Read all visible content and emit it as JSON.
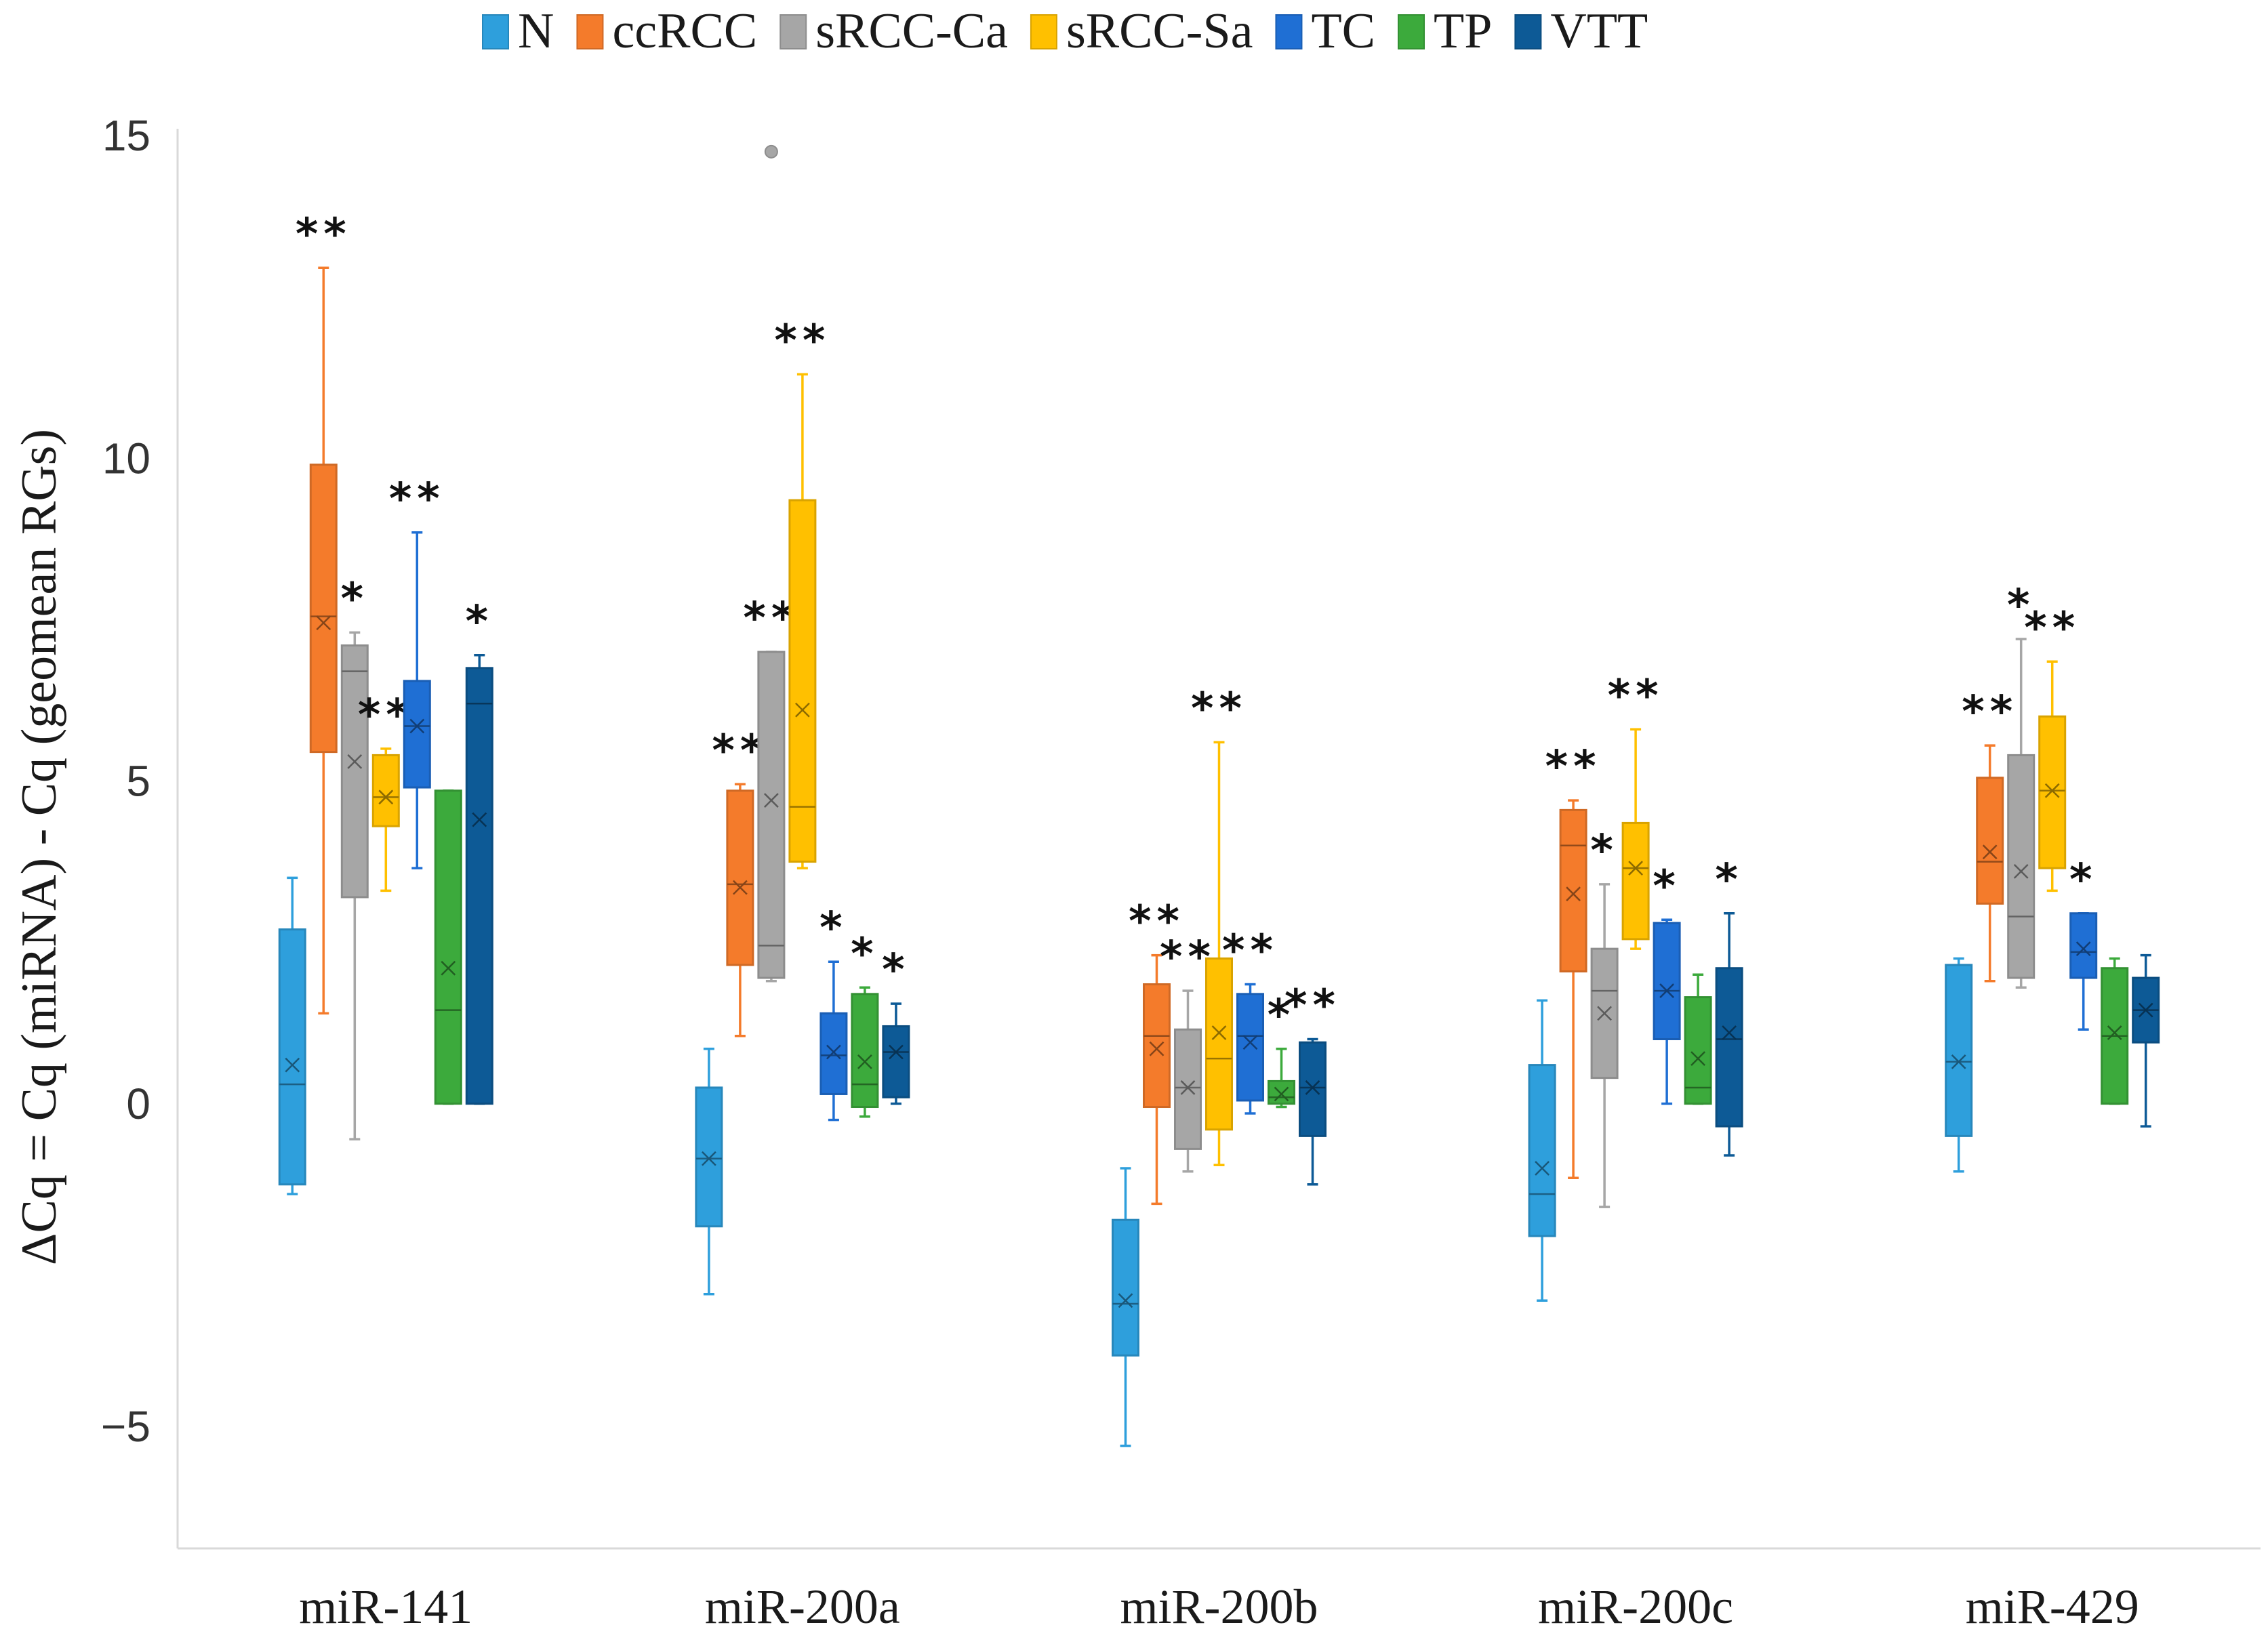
{
  "chart_data": {
    "type": "boxplot",
    "title": "",
    "xlabel": "",
    "ylabel": "ΔCq = Cq (miRNA) - Cq (geomean RGs)",
    "ylim": [
      -7,
      15
    ],
    "yticks": [
      -5,
      0,
      5,
      10,
      15
    ],
    "grid": false,
    "legend_position": "top",
    "categories": [
      "miR-141",
      "miR-200a",
      "miR-200b",
      "miR-200c",
      "miR-429"
    ],
    "series": [
      {
        "name": "N",
        "color": "#2e9fdc",
        "boxes": [
          {
            "min": -1.4,
            "q1": -1.25,
            "median": 0.3,
            "mean": 0.6,
            "q3": 2.7,
            "max": 3.5,
            "sig": ""
          },
          {
            "min": -2.95,
            "q1": -1.9,
            "median": -0.85,
            "mean": -0.85,
            "q3": 0.25,
            "max": 0.85,
            "sig": ""
          },
          {
            "min": -5.3,
            "q1": -3.9,
            "median": -3.1,
            "mean": -3.05,
            "q3": -1.8,
            "max": -1.0,
            "sig": ""
          },
          {
            "min": -3.05,
            "q1": -2.05,
            "median": -1.4,
            "mean": -1.0,
            "q3": 0.6,
            "max": 1.6,
            "sig": ""
          },
          {
            "min": -1.05,
            "q1": -0.5,
            "median": 0.65,
            "mean": 0.65,
            "q3": 2.15,
            "max": 2.25,
            "sig": ""
          }
        ]
      },
      {
        "name": "ccRCC",
        "color": "#f47b2b",
        "boxes": [
          {
            "min": 1.4,
            "q1": 5.45,
            "median": 7.55,
            "mean": 7.45,
            "q3": 9.9,
            "max": 12.95,
            "sig": "**"
          },
          {
            "min": 1.05,
            "q1": 2.15,
            "median": 3.4,
            "mean": 3.35,
            "q3": 4.85,
            "max": 4.95,
            "sig": "**"
          },
          {
            "min": -1.55,
            "q1": -0.05,
            "median": 1.05,
            "mean": 0.85,
            "q3": 1.85,
            "max": 2.3,
            "sig": "**"
          },
          {
            "min": -1.15,
            "q1": 2.05,
            "median": 4.0,
            "mean": 3.25,
            "q3": 4.55,
            "max": 4.7,
            "sig": "**"
          },
          {
            "min": 1.9,
            "q1": 3.1,
            "median": 3.75,
            "mean": 3.9,
            "q3": 5.05,
            "max": 5.55,
            "sig": "**"
          }
        ]
      },
      {
        "name": "sRCC-Ca",
        "color": "#a6a6a6",
        "boxes": [
          {
            "min": -0.55,
            "q1": 3.2,
            "median": 6.7,
            "mean": 5.3,
            "q3": 7.1,
            "max": 7.3,
            "sig": "*"
          },
          {
            "min": 1.9,
            "q1": 1.95,
            "median": 2.45,
            "mean": 4.7,
            "q3": 7.0,
            "max": 7.0,
            "sig": "**",
            "outliers": [
              14.75
            ]
          },
          {
            "min": -1.05,
            "q1": -0.7,
            "median": 0.25,
            "mean": 0.25,
            "q3": 1.15,
            "max": 1.75,
            "sig": "**"
          },
          {
            "min": -1.6,
            "q1": 0.4,
            "median": 1.75,
            "mean": 1.4,
            "q3": 2.4,
            "max": 3.4,
            "sig": "*"
          },
          {
            "min": 1.8,
            "q1": 1.95,
            "median": 2.9,
            "mean": 3.6,
            "q3": 5.4,
            "max": 7.2,
            "sig": "*"
          }
        ]
      },
      {
        "name": "sRCC-Sa",
        "color": "#ffc000",
        "boxes": [
          {
            "min": 3.3,
            "q1": 4.3,
            "median": 4.75,
            "mean": 4.75,
            "q3": 5.4,
            "max": 5.5,
            "sig": "**"
          },
          {
            "min": 3.65,
            "q1": 3.75,
            "median": 4.6,
            "mean": 6.1,
            "q3": 9.35,
            "max": 11.3,
            "sig": "**"
          },
          {
            "min": -0.95,
            "q1": -0.4,
            "median": 0.7,
            "mean": 1.1,
            "q3": 2.25,
            "max": 5.6,
            "sig": "**"
          },
          {
            "min": 2.4,
            "q1": 2.55,
            "median": 3.65,
            "mean": 3.65,
            "q3": 4.35,
            "max": 5.8,
            "sig": "**"
          },
          {
            "min": 3.3,
            "q1": 3.65,
            "median": 4.85,
            "mean": 4.85,
            "q3": 6.0,
            "max": 6.85,
            "sig": "**"
          }
        ]
      },
      {
        "name": "TC",
        "color": "#1f6fd4",
        "boxes": [
          {
            "min": 3.65,
            "q1": 4.9,
            "median": 5.85,
            "mean": 5.85,
            "q3": 6.55,
            "max": 8.85,
            "sig": "**"
          },
          {
            "min": -0.25,
            "q1": 0.15,
            "median": 0.75,
            "mean": 0.8,
            "q3": 1.4,
            "max": 2.2,
            "sig": "*"
          },
          {
            "min": -0.15,
            "q1": 0.05,
            "median": 1.05,
            "mean": 0.95,
            "q3": 1.7,
            "max": 1.85,
            "sig": "**"
          },
          {
            "min": 0.0,
            "q1": 1.0,
            "median": 1.75,
            "mean": 1.75,
            "q3": 2.8,
            "max": 2.85,
            "sig": "*"
          },
          {
            "min": 1.15,
            "q1": 1.95,
            "median": 2.35,
            "mean": 2.4,
            "q3": 2.95,
            "max": 2.95,
            "sig": "*"
          }
        ]
      },
      {
        "name": "TP",
        "color": "#3caa3c",
        "boxes": [
          {
            "min": 0.0,
            "q1": 0.0,
            "median": 1.45,
            "mean": 2.1,
            "q3": 4.85,
            "max": 4.85,
            "sig": ""
          },
          {
            "min": -0.2,
            "q1": -0.05,
            "median": 0.3,
            "mean": 0.65,
            "q3": 1.7,
            "max": 1.8,
            "sig": "*"
          },
          {
            "min": -0.05,
            "q1": 0.0,
            "median": 0.1,
            "mean": 0.15,
            "q3": 0.35,
            "max": 0.85,
            "sig": "*"
          },
          {
            "min": 0.0,
            "q1": 0.0,
            "median": 0.25,
            "mean": 0.7,
            "q3": 1.65,
            "max": 2.0,
            "sig": ""
          },
          {
            "min": 0.0,
            "q1": 0.0,
            "median": 1.05,
            "mean": 1.1,
            "q3": 2.1,
            "max": 2.25,
            "sig": ""
          }
        ]
      },
      {
        "name": "VTT",
        "color": "#0d5a96",
        "boxes": [
          {
            "min": 0.0,
            "q1": 0.0,
            "median": 6.2,
            "mean": 4.4,
            "q3": 6.75,
            "max": 6.95,
            "sig": "*"
          },
          {
            "min": 0.0,
            "q1": 0.1,
            "median": 0.8,
            "mean": 0.8,
            "q3": 1.2,
            "max": 1.55,
            "sig": "*"
          },
          {
            "min": -1.25,
            "q1": -0.5,
            "median": 0.25,
            "mean": 0.25,
            "q3": 0.95,
            "max": 1.0,
            "sig": "**"
          },
          {
            "min": -0.8,
            "q1": -0.35,
            "median": 1.0,
            "mean": 1.1,
            "q3": 2.1,
            "max": 2.95,
            "sig": "*"
          },
          {
            "min": -0.35,
            "q1": 0.95,
            "median": 1.45,
            "mean": 1.45,
            "q3": 1.95,
            "max": 2.3,
            "sig": ""
          }
        ]
      }
    ]
  }
}
